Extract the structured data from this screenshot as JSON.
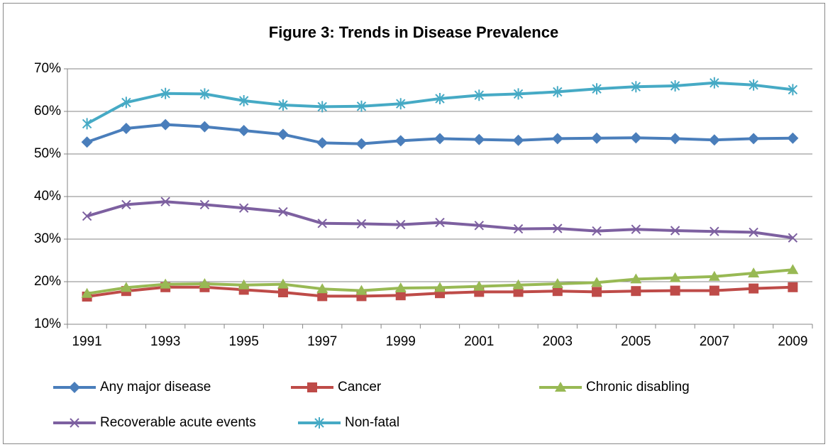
{
  "chart_data": {
    "type": "line",
    "title": "Figure 3: Trends in Disease Prevalence",
    "categories": [
      "1991",
      null,
      "1993",
      null,
      "1995",
      null,
      "1997",
      null,
      "1999",
      null,
      "2001",
      null,
      "2003",
      null,
      "2005",
      null,
      "2007",
      null,
      "2009"
    ],
    "ylim": [
      10,
      70
    ],
    "yticks": [
      {
        "value": 10,
        "label": "10%"
      },
      {
        "value": 20,
        "label": "20%"
      },
      {
        "value": 30,
        "label": "30%"
      },
      {
        "value": 40,
        "label": "40%"
      },
      {
        "value": 50,
        "label": "50%"
      },
      {
        "value": 60,
        "label": "60%"
      },
      {
        "value": 70,
        "label": "70%"
      }
    ],
    "grid": true,
    "legend": "bottom",
    "series": [
      {
        "name": "Any major disease",
        "color": "#4a7ebb",
        "marker": "diamond",
        "values": [
          52.8,
          56.0,
          56.9,
          56.4,
          55.5,
          54.6,
          52.6,
          52.4,
          53.1,
          53.6,
          53.4,
          53.2,
          53.6,
          53.7,
          53.8,
          53.6,
          53.3,
          53.6,
          53.7
        ]
      },
      {
        "name": "Cancer",
        "color": "#be4b48",
        "marker": "square",
        "values": [
          16.5,
          17.8,
          18.7,
          18.7,
          18.1,
          17.5,
          16.6,
          16.6,
          16.8,
          17.3,
          17.6,
          17.6,
          17.8,
          17.6,
          17.8,
          17.9,
          17.9,
          18.4,
          18.7
        ]
      },
      {
        "name": "Chronic disabling",
        "color": "#98b954",
        "marker": "triangle",
        "values": [
          17.2,
          18.6,
          19.4,
          19.5,
          19.2,
          19.4,
          18.3,
          17.9,
          18.5,
          18.6,
          18.9,
          19.2,
          19.5,
          19.8,
          20.6,
          20.9,
          21.2,
          22.0,
          22.8
        ]
      },
      {
        "name": "Recoverable acute events",
        "color": "#7d60a0",
        "marker": "x",
        "values": [
          35.4,
          38.1,
          38.8,
          38.1,
          37.3,
          36.4,
          33.7,
          33.6,
          33.4,
          33.9,
          33.2,
          32.4,
          32.5,
          31.9,
          32.3,
          32.0,
          31.8,
          31.6,
          30.3
        ]
      },
      {
        "name": "Non-fatal",
        "color": "#46aac5",
        "marker": "star",
        "values": [
          57.1,
          62.1,
          64.2,
          64.1,
          62.5,
          61.5,
          61.1,
          61.2,
          61.8,
          63.0,
          63.8,
          64.1,
          64.6,
          65.3,
          65.8,
          66.0,
          66.7,
          66.2,
          65.1
        ]
      }
    ]
  }
}
